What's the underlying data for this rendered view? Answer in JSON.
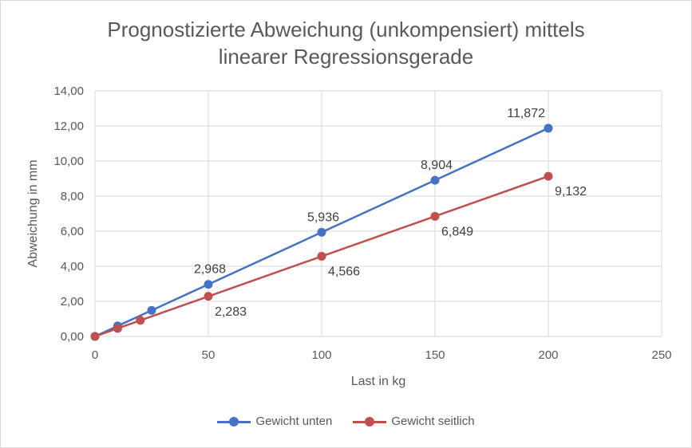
{
  "chart_data": {
    "type": "line",
    "title_lines": [
      "Prognostizierte Abweichung (unkompensiert) mittels",
      "linearer Regressionsgerade"
    ],
    "xlabel": "Last in kg",
    "ylabel": "Abweichung in mm",
    "xlim": [
      0,
      250
    ],
    "ylim": [
      0,
      14
    ],
    "x_ticks": [
      "0",
      "50",
      "100",
      "150",
      "200",
      "250"
    ],
    "y_ticks": [
      "0,00",
      "2,00",
      "4,00",
      "6,00",
      "8,00",
      "10,00",
      "12,00",
      "14,00"
    ],
    "grid": true,
    "legend_position": "bottom",
    "series": [
      {
        "name": "Gewicht unten",
        "color": "#4472c4",
        "points": [
          {
            "x": 0,
            "y": 0
          },
          {
            "x": 10,
            "y": 0.594
          },
          {
            "x": 25,
            "y": 1.484
          },
          {
            "x": 50,
            "y": 2.968,
            "label": "2,968"
          },
          {
            "x": 100,
            "y": 5.936,
            "label": "5,936"
          },
          {
            "x": 150,
            "y": 8.904,
            "label": "8,904"
          },
          {
            "x": 200,
            "y": 11.872,
            "label": "11,872"
          }
        ]
      },
      {
        "name": "Gewicht seitlich",
        "color": "#c0504d",
        "points": [
          {
            "x": 0,
            "y": 0
          },
          {
            "x": 10,
            "y": 0.457
          },
          {
            "x": 20,
            "y": 0.913
          },
          {
            "x": 50,
            "y": 2.283,
            "label": "2,283"
          },
          {
            "x": 100,
            "y": 4.566,
            "label": "4,566"
          },
          {
            "x": 150,
            "y": 6.849,
            "label": "6,849"
          },
          {
            "x": 200,
            "y": 9.132,
            "label": "9,132"
          }
        ]
      }
    ]
  }
}
